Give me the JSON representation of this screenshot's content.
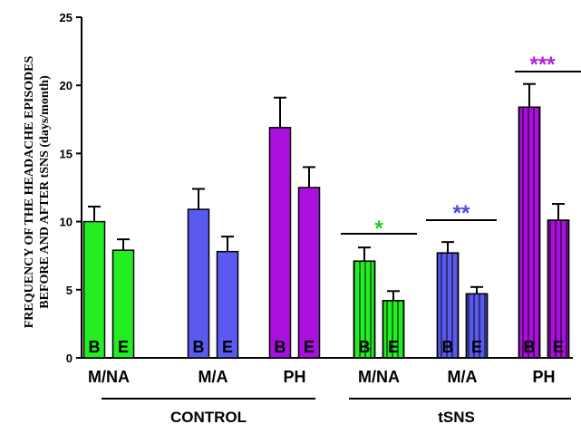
{
  "chart_data": {
    "type": "bar",
    "ylabel_line1": "FREQUENCY OF THE HEADACHE EPISODES",
    "ylabel_line2": "BEFORE AND AFTER tSNS (days/month)",
    "ylim": [
      0,
      25
    ],
    "yticks": [
      "0",
      "5",
      "10",
      "15",
      "20",
      "25"
    ],
    "categories": [
      "M/NA",
      "M/A",
      "PH",
      "M/NA",
      "M/A",
      "PH"
    ],
    "groups": [
      {
        "label": "CONTROL",
        "categories": [
          0,
          1,
          2
        ]
      },
      {
        "label": "tSNS",
        "categories": [
          3,
          4,
          5
        ]
      }
    ],
    "bar_labels": [
      "B",
      "E"
    ],
    "bars": [
      {
        "category": 0,
        "label": "B",
        "value": 10.0,
        "error": 1.1,
        "color": "#22ee22",
        "hatched": false
      },
      {
        "category": 0,
        "label": "E",
        "value": 7.9,
        "error": 0.8,
        "color": "#22ee22",
        "hatched": false
      },
      {
        "category": 1,
        "label": "B",
        "value": 10.9,
        "error": 1.5,
        "color": "#5a5af0",
        "hatched": false
      },
      {
        "category": 1,
        "label": "E",
        "value": 7.8,
        "error": 1.1,
        "color": "#5a5af0",
        "hatched": false
      },
      {
        "category": 2,
        "label": "B",
        "value": 16.9,
        "error": 2.2,
        "color": "#aa10dd",
        "hatched": false
      },
      {
        "category": 2,
        "label": "E",
        "value": 12.5,
        "error": 1.5,
        "color": "#aa10dd",
        "hatched": false
      },
      {
        "category": 3,
        "label": "B",
        "value": 7.1,
        "error": 1.0,
        "color": "#22ee22",
        "hatched": true
      },
      {
        "category": 3,
        "label": "E",
        "value": 4.2,
        "error": 0.7,
        "color": "#22ee22",
        "hatched": true
      },
      {
        "category": 4,
        "label": "B",
        "value": 7.7,
        "error": 0.8,
        "color": "#5a5af0",
        "hatched": true
      },
      {
        "category": 4,
        "label": "E",
        "value": 4.7,
        "error": 0.5,
        "color": "#5a5af0",
        "hatched": true
      },
      {
        "category": 5,
        "label": "B",
        "value": 18.4,
        "error": 1.7,
        "color": "#aa10dd",
        "hatched": true
      },
      {
        "category": 5,
        "label": "E",
        "value": 10.1,
        "error": 1.2,
        "color": "#aa10dd",
        "hatched": true
      }
    ],
    "significance": [
      {
        "category": 3,
        "text": "*",
        "color": "#22cc22"
      },
      {
        "category": 4,
        "text": "**",
        "color": "#4848e8"
      },
      {
        "category": 5,
        "text": "***",
        "color": "#b020d8"
      }
    ]
  }
}
